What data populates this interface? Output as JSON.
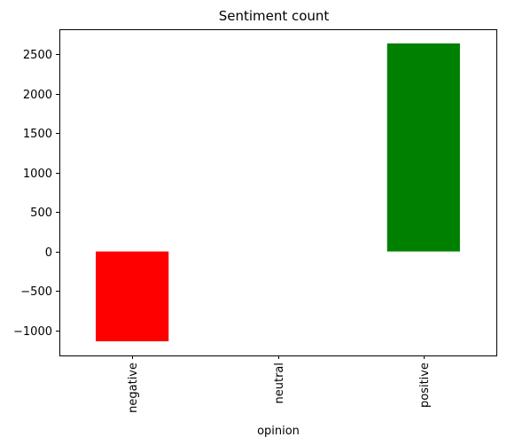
{
  "chart_data": {
    "type": "bar",
    "title": "Sentiment count",
    "xlabel": "opinion",
    "ylabel": "",
    "categories": [
      "negative",
      "neutral",
      "positive"
    ],
    "values": [
      -1140,
      0,
      2640
    ],
    "colors": [
      "#ff0000",
      "#0000ff",
      "#008000"
    ],
    "ylim": [
      -1320,
      2820
    ],
    "yticks": [
      -1000,
      -500,
      0,
      500,
      1000,
      1500,
      2000,
      2500
    ],
    "ytick_labels": [
      "−1000",
      "−500",
      "0",
      "500",
      "1000",
      "1500",
      "2000",
      "2500"
    ],
    "grid": false,
    "legend": "none"
  }
}
